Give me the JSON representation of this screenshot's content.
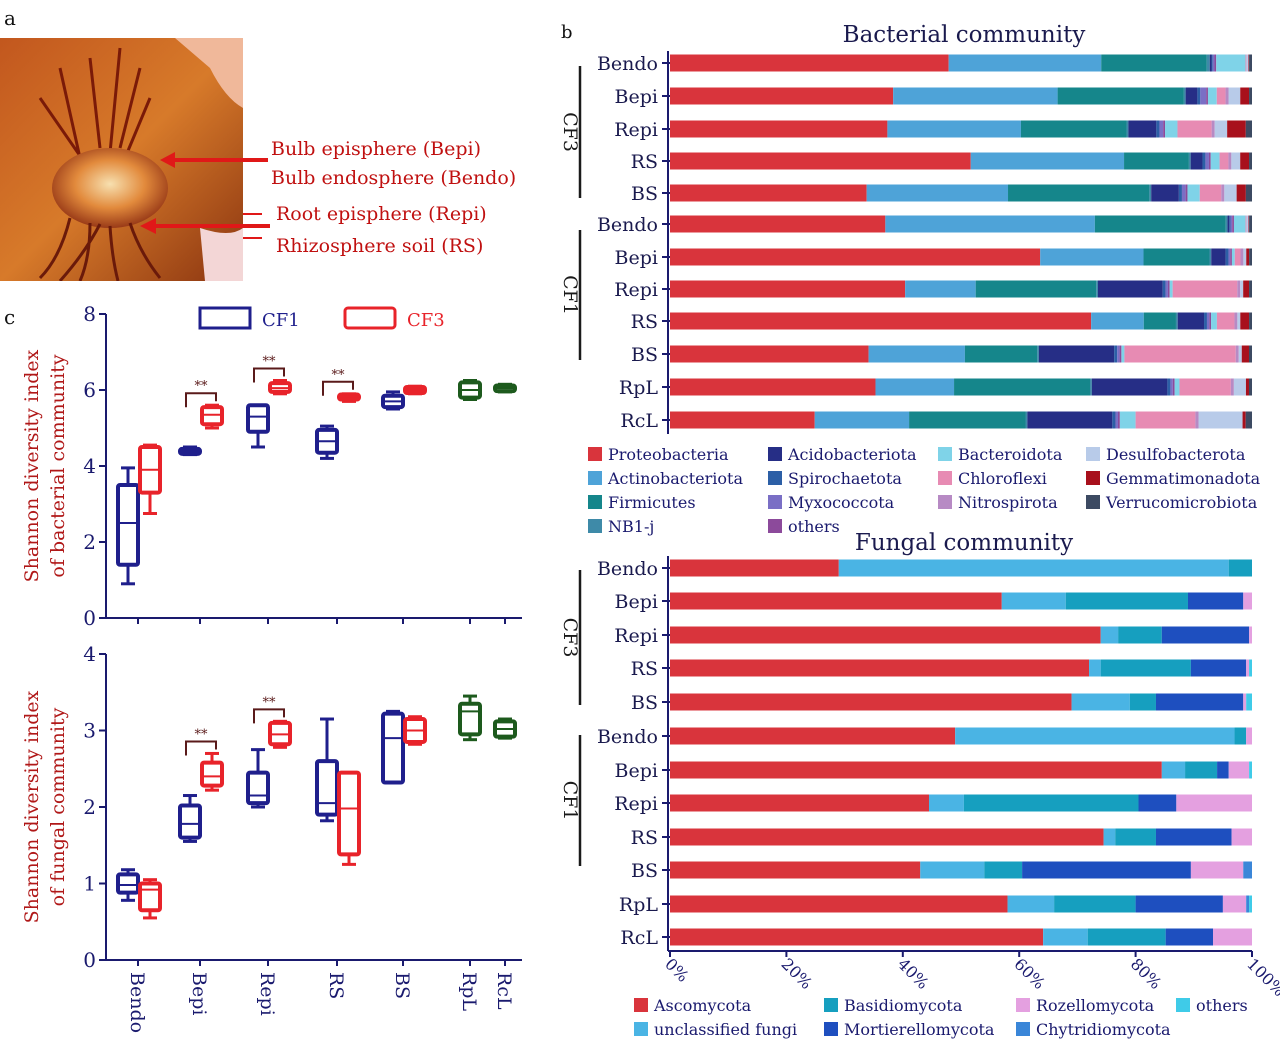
{
  "panels": {
    "a": "a",
    "b": "b",
    "c": "c"
  },
  "photo_annotations": [
    "Bulb episphere (Bepi)",
    "Bulb endosphere (Bendo)",
    "Root episphere (Repi)",
    "Rhizosphere soil (RS)"
  ],
  "colors": {
    "CF1": "#1f1f8c",
    "CF3": "#e8232a",
    "other": "#1d5a1d",
    "axis": "#1a1a6e",
    "label_red": "#b01818"
  },
  "chart_data": [
    {
      "type": "box",
      "id": "bacterial_shannon",
      "ylabel": "Shannon diversity index of bacterial community",
      "ylim": [
        0,
        8
      ],
      "yticks": [
        "0",
        "2",
        "4",
        "6",
        "8"
      ],
      "categories": [
        "Bendo",
        "Bepi",
        "Repi",
        "RS",
        "BS",
        "RpL",
        "RcL"
      ],
      "legend": [
        "CF1",
        "CF3"
      ],
      "series": [
        {
          "name": "CF1",
          "boxes": [
            {
              "category": "Bendo",
              "min": 0.9,
              "q1": 1.4,
              "median": 2.5,
              "q3": 3.5,
              "max": 3.95
            },
            {
              "category": "Bepi",
              "min": 4.3,
              "q1": 4.32,
              "median": 4.38,
              "q3": 4.45,
              "max": 4.5
            },
            {
              "category": "Repi",
              "min": 4.5,
              "q1": 4.9,
              "median": 5.3,
              "q3": 5.6,
              "max": 5.6
            },
            {
              "category": "RS",
              "min": 4.2,
              "q1": 4.35,
              "median": 4.65,
              "q3": 4.95,
              "max": 5.05
            },
            {
              "category": "BS",
              "min": 5.5,
              "q1": 5.55,
              "median": 5.7,
              "q3": 5.85,
              "max": 5.95
            }
          ]
        },
        {
          "name": "CF3",
          "boxes": [
            {
              "category": "Bendo",
              "min": 2.75,
              "q1": 3.3,
              "median": 3.9,
              "q3": 4.5,
              "max": 4.55
            },
            {
              "category": "Bepi",
              "min": 5.0,
              "q1": 5.1,
              "median": 5.35,
              "q3": 5.55,
              "max": 5.6
            },
            {
              "category": "Repi",
              "min": 5.9,
              "q1": 5.95,
              "median": 6.05,
              "q3": 6.18,
              "max": 6.25
            },
            {
              "category": "RS",
              "min": 5.7,
              "q1": 5.75,
              "median": 5.82,
              "q3": 5.88,
              "max": 5.9
            },
            {
              "category": "BS",
              "min": 5.9,
              "q1": 5.92,
              "median": 6.0,
              "q3": 6.08,
              "max": 6.1
            }
          ]
        },
        {
          "name": "",
          "boxes": [
            {
              "category": "RpL",
              "min": 5.75,
              "q1": 5.8,
              "median": 6.0,
              "q3": 6.2,
              "max": 6.25
            },
            {
              "category": "RcL",
              "min": 5.95,
              "q1": 5.97,
              "median": 6.05,
              "q3": 6.12,
              "max": 6.15
            }
          ]
        }
      ],
      "significance": [
        {
          "category": "Bepi",
          "label": "**"
        },
        {
          "category": "Repi",
          "label": "**"
        },
        {
          "category": "RS",
          "label": "**"
        }
      ]
    },
    {
      "type": "box",
      "id": "fungal_shannon",
      "ylabel": "Shannon diversity index of fungal community",
      "ylim": [
        0,
        4
      ],
      "yticks": [
        "0",
        "1",
        "2",
        "3",
        "4"
      ],
      "categories": [
        "Bendo",
        "Bepi",
        "Repi",
        "RS",
        "BS",
        "RpL",
        "RcL"
      ],
      "series": [
        {
          "name": "CF1",
          "boxes": [
            {
              "category": "Bendo",
              "min": 0.78,
              "q1": 0.88,
              "median": 0.98,
              "q3": 1.12,
              "max": 1.18
            },
            {
              "category": "Bepi",
              "min": 1.55,
              "q1": 1.6,
              "median": 1.78,
              "q3": 2.02,
              "max": 2.15
            },
            {
              "category": "Repi",
              "min": 2.0,
              "q1": 2.05,
              "median": 2.15,
              "q3": 2.45,
              "max": 2.75
            },
            {
              "category": "RS",
              "min": 1.82,
              "q1": 1.9,
              "median": 2.05,
              "q3": 2.6,
              "max": 3.15
            },
            {
              "category": "BS",
              "min": 2.32,
              "q1": 2.32,
              "median": 2.9,
              "q3": 3.22,
              "max": 3.25
            }
          ]
        },
        {
          "name": "CF3",
          "boxes": [
            {
              "category": "Bendo",
              "min": 0.55,
              "q1": 0.65,
              "median": 0.92,
              "q3": 1.0,
              "max": 1.05
            },
            {
              "category": "Bepi",
              "min": 2.22,
              "q1": 2.28,
              "median": 2.4,
              "q3": 2.58,
              "max": 2.7
            },
            {
              "category": "Repi",
              "min": 2.78,
              "q1": 2.82,
              "median": 2.95,
              "q3": 3.1,
              "max": 3.12
            },
            {
              "category": "RS",
              "min": 1.25,
              "q1": 1.38,
              "median": 1.98,
              "q3": 2.45,
              "max": 2.45
            },
            {
              "category": "BS",
              "min": 2.82,
              "q1": 2.85,
              "median": 3.0,
              "q3": 3.15,
              "max": 3.18
            }
          ]
        },
        {
          "name": "",
          "boxes": [
            {
              "category": "RpL",
              "min": 2.88,
              "q1": 2.95,
              "median": 3.25,
              "q3": 3.35,
              "max": 3.45
            },
            {
              "category": "RcL",
              "min": 2.9,
              "q1": 2.92,
              "median": 3.02,
              "q3": 3.12,
              "max": 3.15
            }
          ]
        }
      ],
      "significance": [
        {
          "category": "Bepi",
          "label": "**"
        },
        {
          "category": "Repi",
          "label": "**"
        }
      ]
    },
    {
      "type": "bar",
      "stacked": "horizontal-percent",
      "id": "bacterial_community",
      "title": "Bacterial community",
      "groups": [
        {
          "label": "CF3",
          "categories": [
            "Bendo",
            "Bepi",
            "Repi",
            "RS",
            "BS"
          ]
        },
        {
          "label": "CF1",
          "categories": [
            "Bendo",
            "Bepi",
            "Repi",
            "RS",
            "BS"
          ]
        },
        {
          "label": "",
          "categories": [
            "RpL",
            "RcL"
          ]
        }
      ],
      "categories": [
        "Bendo",
        "Bepi",
        "Repi",
        "RS",
        "BS",
        "Bendo",
        "Bepi",
        "Repi",
        "RS",
        "BS",
        "RpL",
        "RcL"
      ],
      "series": [
        {
          "name": "Proteobacteria",
          "color": "#d9343c",
          "values": [
            47.5,
            38,
            35,
            51,
            32,
            37,
            64.5,
            40,
            72,
            33,
            34,
            23
          ]
        },
        {
          "name": "Actinobacteriota",
          "color": "#4ea3d8",
          "values": [
            26,
            28,
            21.5,
            26,
            23,
            36,
            18,
            12,
            9,
            16,
            13,
            15
          ]
        },
        {
          "name": "Firmicutes",
          "color": "#15868b",
          "values": [
            18,
            21.5,
            17,
            11,
            23,
            22.5,
            11.5,
            20.5,
            5.5,
            12,
            22.5,
            18.5
          ]
        },
        {
          "name": "NB1-j",
          "color": "#3e8aa8",
          "values": [
            0.5,
            0.3,
            0.3,
            0.3,
            0.3,
            0.3,
            0.3,
            0.3,
            0.3,
            0.3,
            0.3,
            0.3
          ]
        },
        {
          "name": "Acidobacteriota",
          "color": "#262e86",
          "values": [
            0.3,
            2,
            4.5,
            2,
            4.5,
            0.3,
            2.5,
            11,
            4.5,
            12.5,
            12.5,
            13.5
          ]
        },
        {
          "name": "Spirochaetota",
          "color": "#2c5fa6",
          "values": [
            0.2,
            0.5,
            0.5,
            0.5,
            0.5,
            0.2,
            0.5,
            0.5,
            0.5,
            0.5,
            0.5,
            0.5
          ]
        },
        {
          "name": "Myxococcota",
          "color": "#7a6fc5",
          "values": [
            0.3,
            1,
            0.6,
            0.6,
            0.6,
            0.3,
            0.3,
            0.4,
            0.4,
            0.4,
            0.4,
            0.4
          ]
        },
        {
          "name": "others",
          "color": "#8c4a9b",
          "values": [
            0.3,
            0.3,
            0.3,
            0.3,
            0.3,
            0.3,
            0.3,
            0.3,
            0.3,
            0.3,
            0.3,
            0.3
          ]
        },
        {
          "name": "Bacteroidota",
          "color": "#7fd3e8",
          "values": [
            5,
            1.5,
            2,
            1.5,
            2,
            2,
            0.5,
            0.5,
            1,
            0.5,
            0.8,
            2.5
          ]
        },
        {
          "name": "Chloroflexi",
          "color": "#e78bb3",
          "values": [
            0.1,
            1.5,
            5.5,
            1.5,
            3.5,
            0.1,
            1,
            11,
            3,
            18.5,
            8.5,
            9.5
          ]
        },
        {
          "name": "Nitrospirota",
          "color": "#b78ac4",
          "values": [
            0.1,
            0.5,
            0.5,
            0.5,
            0.5,
            0.1,
            0.5,
            0.5,
            0.5,
            0.5,
            0.5,
            0.5
          ]
        },
        {
          "name": "Desulfobacterota",
          "color": "#b8cbe9",
          "values": [
            0.3,
            2,
            2,
            1.5,
            2,
            0.3,
            0.5,
            0.5,
            0.5,
            0.5,
            2,
            7
          ]
        },
        {
          "name": "Gemmatimonadota",
          "color": "#a8101c",
          "values": [
            0.1,
            1.5,
            3,
            1.5,
            1.5,
            0.1,
            0.5,
            1,
            1.5,
            1.2,
            0.5,
            0.5
          ]
        },
        {
          "name": "Verrucomicrobiota",
          "color": "#3c4a62",
          "values": [
            0.5,
            0.5,
            1,
            0.5,
            1,
            0.5,
            0.5,
            0.5,
            0.5,
            0.5,
            0.5,
            1
          ]
        }
      ],
      "xlim": [
        0,
        100
      ]
    },
    {
      "type": "bar",
      "stacked": "horizontal-percent",
      "id": "fungal_community",
      "title": "Fungal community",
      "groups": [
        {
          "label": "CF3",
          "categories": [
            "Bendo",
            "Bepi",
            "Repi",
            "RS",
            "BS"
          ]
        },
        {
          "label": "CF1",
          "categories": [
            "Bendo",
            "Bepi",
            "Repi",
            "RS",
            "BS"
          ]
        },
        {
          "label": "",
          "categories": [
            "RpL",
            "RcL"
          ]
        }
      ],
      "categories": [
        "Bendo",
        "Bepi",
        "Repi",
        "RS",
        "BS",
        "Bendo",
        "Bepi",
        "Repi",
        "RS",
        "BS",
        "RpL",
        "RcL"
      ],
      "series": [
        {
          "name": "Ascomycota",
          "color": "#d9343c",
          "values": [
            29,
            57,
            74,
            72,
            69,
            49,
            84.5,
            44.5,
            74.5,
            43,
            58,
            67
          ]
        },
        {
          "name": "unclassified fungi",
          "color": "#4ab4e4",
          "values": [
            67,
            11,
            3,
            2,
            10,
            48,
            4,
            6,
            2,
            11,
            8,
            8
          ]
        },
        {
          "name": "Basidiomycota",
          "color": "#169fbf",
          "values": [
            4,
            21,
            7.5,
            15.5,
            4.5,
            2,
            5.5,
            30,
            7,
            6.5,
            14,
            14
          ]
        },
        {
          "name": "Mortierellomycota",
          "color": "#1e4fbf",
          "values": [
            0,
            9.5,
            15,
            9.5,
            15,
            0,
            2,
            6.5,
            13,
            29,
            15,
            8.5
          ]
        },
        {
          "name": "Rozellomycota",
          "color": "#e4a0e0",
          "values": [
            0,
            1.5,
            0.5,
            0.5,
            0.5,
            1,
            3.5,
            13,
            3.5,
            9,
            4,
            7
          ]
        },
        {
          "name": "Chytridiomycota",
          "color": "#3a86d8",
          "values": [
            0,
            0,
            0,
            0,
            0,
            0,
            0,
            0,
            0,
            1.5,
            0.5,
            0
          ]
        },
        {
          "name": "others",
          "color": "#3fcbe8",
          "values": [
            0,
            0,
            0,
            0.5,
            1,
            0,
            0.5,
            0,
            0,
            0,
            0.5,
            0
          ]
        }
      ],
      "xlim": [
        0,
        100
      ],
      "xticks": [
        "0%",
        "20%",
        "40%",
        "60%",
        "80%",
        "100%"
      ]
    }
  ]
}
